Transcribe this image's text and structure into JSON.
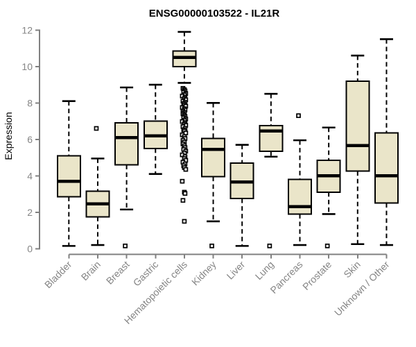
{
  "chart_data": {
    "type": "boxplot",
    "title": "ENSG00000103522 - IL21R",
    "xlabel": "",
    "ylabel": "Expression",
    "ylim": [
      0,
      12
    ],
    "yticks": [
      0,
      2,
      4,
      6,
      8,
      10,
      12
    ],
    "grid": false,
    "legend": "none",
    "categories": [
      "Bladder",
      "Brain",
      "Breast",
      "Gastric",
      "Hematopoietic cells",
      "Kidney",
      "Liver",
      "Lung",
      "Pancreas",
      "Prostate",
      "Skin",
      "Unknown / Other"
    ],
    "series": [
      {
        "category": "Bladder",
        "whisker_low": 0.15,
        "q1": 2.85,
        "median": 3.7,
        "q3": 5.1,
        "whisker_high": 8.1,
        "outliers": []
      },
      {
        "category": "Brain",
        "whisker_low": 0.2,
        "q1": 1.75,
        "median": 2.45,
        "q3": 3.15,
        "whisker_high": 4.95,
        "outliers": [
          6.6
        ]
      },
      {
        "category": "Breast",
        "whisker_low": 2.15,
        "q1": 4.6,
        "median": 6.1,
        "q3": 6.9,
        "whisker_high": 8.85,
        "outliers": [
          0.15
        ]
      },
      {
        "category": "Gastric",
        "whisker_low": 4.1,
        "q1": 5.5,
        "median": 6.2,
        "q3": 7.0,
        "whisker_high": 9.0,
        "outliers": []
      },
      {
        "category": "Hematopoietic cells",
        "whisker_low": 9.1,
        "q1": 10.0,
        "median": 10.5,
        "q3": 10.85,
        "whisker_high": 11.9,
        "outliers": [
          8.8,
          8.73,
          8.66,
          8.59,
          8.52,
          8.45,
          8.38,
          8.31,
          8.24,
          8.17,
          8.1,
          8.03,
          7.96,
          7.89,
          7.82,
          7.75,
          7.68,
          7.61,
          7.54,
          7.47,
          7.4,
          7.33,
          7.26,
          7.19,
          7.12,
          7.05,
          6.98,
          6.91,
          6.84,
          6.77,
          6.7,
          6.6,
          6.52,
          6.45,
          6.35,
          6.25,
          6.15,
          6.05,
          5.95,
          5.85,
          5.75,
          5.65,
          5.55,
          5.45,
          5.35,
          5.25,
          5.15,
          5.05,
          4.95,
          4.85,
          4.75,
          4.65,
          4.55,
          4.45,
          4.35,
          3.7,
          3.1,
          3.03,
          2.65,
          1.5
        ]
      },
      {
        "category": "Kidney",
        "whisker_low": 1.5,
        "q1": 3.95,
        "median": 5.45,
        "q3": 6.05,
        "whisker_high": 8.0,
        "outliers": [
          0.15
        ]
      },
      {
        "category": "Liver",
        "whisker_low": 0.15,
        "q1": 2.75,
        "median": 3.65,
        "q3": 4.7,
        "whisker_high": 5.7,
        "outliers": []
      },
      {
        "category": "Lung",
        "whisker_low": 5.05,
        "q1": 5.35,
        "median": 6.45,
        "q3": 6.75,
        "whisker_high": 8.5,
        "outliers": [
          0.15
        ]
      },
      {
        "category": "Pancreas",
        "whisker_low": 0.2,
        "q1": 1.9,
        "median": 2.3,
        "q3": 3.8,
        "whisker_high": 5.95,
        "outliers": [
          7.3
        ]
      },
      {
        "category": "Prostate",
        "whisker_low": 1.9,
        "q1": 3.1,
        "median": 4.0,
        "q3": 4.85,
        "whisker_high": 6.65,
        "outliers": [
          0.15
        ]
      },
      {
        "category": "Skin",
        "whisker_low": 0.25,
        "q1": 4.25,
        "median": 5.65,
        "q3": 9.2,
        "whisker_high": 10.6,
        "outliers": []
      },
      {
        "category": "Unknown / Other",
        "whisker_low": 0.2,
        "q1": 2.5,
        "median": 4.0,
        "q3": 6.35,
        "whisker_high": 11.5,
        "outliers": []
      }
    ],
    "colors": {
      "box_fill": "#EAE5C9",
      "box_border": "#000000",
      "median": "#000000",
      "whisker": "#000000",
      "axis_line": "#808080",
      "axis_text": "#858585",
      "title": "#000000",
      "background": "#ffffff"
    }
  }
}
